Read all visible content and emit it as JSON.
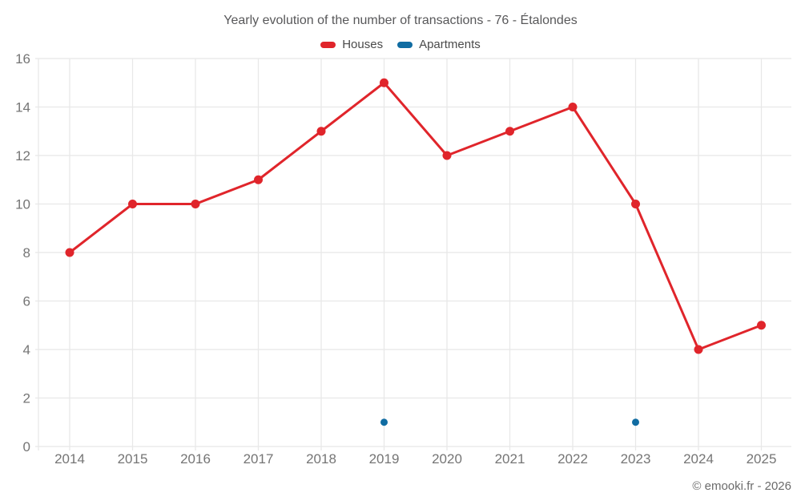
{
  "title": "Yearly evolution of the number of transactions - 76 - Étalondes",
  "legend": {
    "items": [
      {
        "label": "Houses",
        "color": "#e0252b"
      },
      {
        "label": "Apartments",
        "color": "#106ca2"
      }
    ]
  },
  "footer": {
    "copyright": "© emooki.fr - 2026"
  },
  "chart_data": {
    "type": "line",
    "title": "Yearly evolution of the number of transactions - 76 - Étalondes",
    "categories": [
      "2014",
      "2015",
      "2016",
      "2017",
      "2018",
      "2019",
      "2020",
      "2021",
      "2022",
      "2023",
      "2024",
      "2025"
    ],
    "series": [
      {
        "name": "Houses",
        "color": "#e0252b",
        "style": "line+markers",
        "values": [
          8,
          10,
          10,
          11,
          13,
          15,
          12,
          13,
          14,
          10,
          4,
          5
        ]
      },
      {
        "name": "Apartments",
        "color": "#106ca2",
        "style": "markers",
        "values": [
          null,
          null,
          null,
          null,
          null,
          1,
          null,
          null,
          null,
          1,
          null,
          null
        ]
      }
    ],
    "xlabel": "",
    "ylabel": "",
    "ylim": [
      0,
      16
    ],
    "yticks": [
      0,
      2,
      4,
      6,
      8,
      10,
      12,
      14,
      16
    ],
    "grid": true,
    "legend_position": "top",
    "tick_color": "#757575",
    "grid_color": "#e8e8e8"
  }
}
